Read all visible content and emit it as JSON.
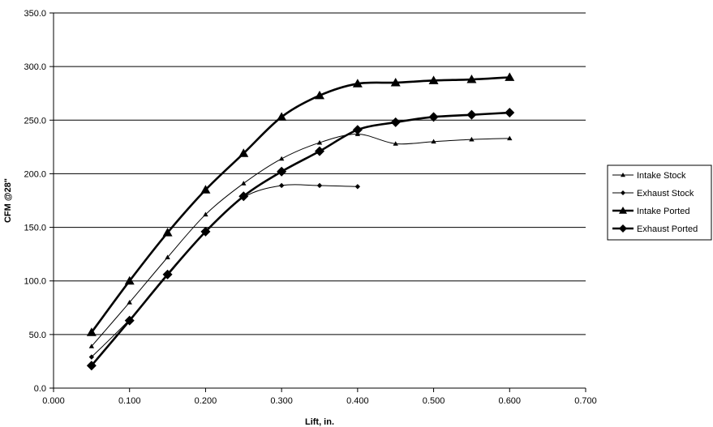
{
  "chart_data": {
    "type": "line",
    "xlabel": "Lift, in.",
    "ylabel": "CFM @28\"",
    "xlim": [
      0,
      0.7
    ],
    "ylim": [
      0,
      350
    ],
    "x_ticks": [
      "0.000",
      "0.100",
      "0.200",
      "0.300",
      "0.400",
      "0.500",
      "0.600",
      "0.700"
    ],
    "y_ticks": [
      "0.0",
      "50.0",
      "100.0",
      "150.0",
      "200.0",
      "250.0",
      "300.0",
      "350.0"
    ],
    "grid": "horizontal",
    "legend_position": "right",
    "series": [
      {
        "name": "Intake Stock",
        "marker": "triangle",
        "weight": "thin",
        "x": [
          0.05,
          0.1,
          0.15,
          0.2,
          0.25,
          0.3,
          0.35,
          0.4,
          0.45,
          0.5,
          0.55,
          0.6
        ],
        "y": [
          39,
          80,
          122,
          162,
          191,
          214,
          229,
          237,
          228,
          230,
          232,
          233
        ]
      },
      {
        "name": "Exhaust Stock",
        "marker": "diamond",
        "weight": "thin",
        "x": [
          0.05,
          0.1,
          0.15,
          0.2,
          0.25,
          0.3,
          0.35,
          0.4
        ],
        "y": [
          29,
          64,
          105,
          146,
          178,
          189,
          189,
          188
        ]
      },
      {
        "name": "Intake Ported",
        "marker": "triangle",
        "weight": "thick",
        "x": [
          0.05,
          0.1,
          0.15,
          0.2,
          0.25,
          0.3,
          0.35,
          0.4,
          0.45,
          0.5,
          0.55,
          0.6
        ],
        "y": [
          52,
          100,
          145,
          185,
          219,
          253,
          273,
          284,
          285,
          287,
          288,
          290
        ]
      },
      {
        "name": "Exhaust Ported",
        "marker": "diamond",
        "weight": "thick",
        "x": [
          0.05,
          0.1,
          0.15,
          0.2,
          0.25,
          0.3,
          0.35,
          0.4,
          0.45,
          0.5,
          0.55,
          0.6
        ],
        "y": [
          21,
          63,
          106,
          146,
          179,
          202,
          221,
          241,
          248,
          253,
          255,
          257
        ]
      }
    ],
    "colors": {
      "line": "#000000",
      "grid": "#000000",
      "background": "#ffffff"
    }
  }
}
